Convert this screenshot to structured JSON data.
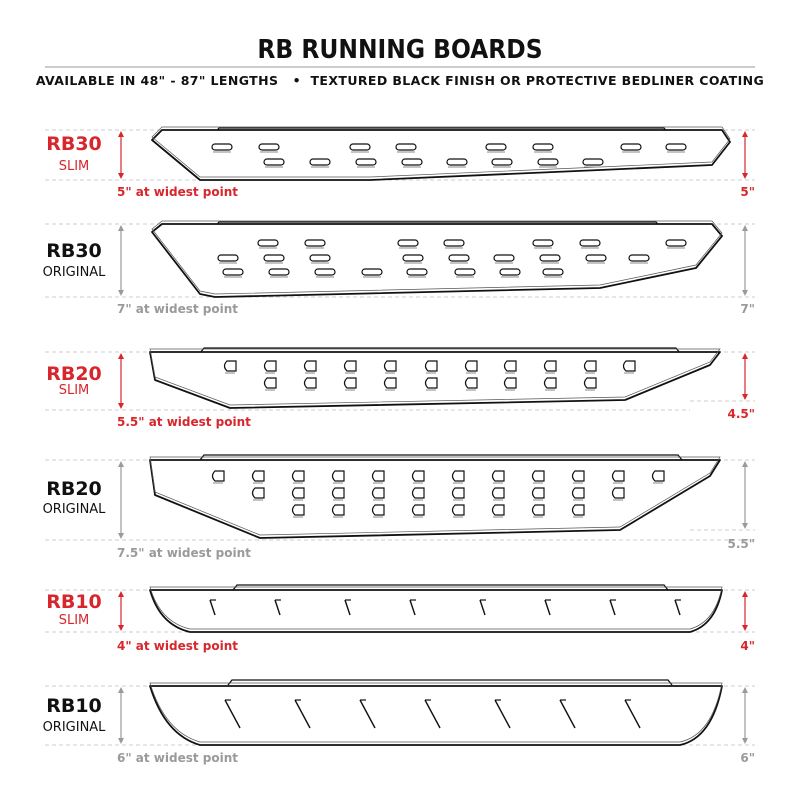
{
  "header": {
    "title": "RB RUNNING BOARDS",
    "subtitle": "AVAILABLE IN 48\" - 87\" LENGTHS   •  TEXTURED BLACK FINISH OR PROTECTIVE BEDLINER COATING"
  },
  "colors": {
    "accent": "#d7262c",
    "muted": "#9a9a9a",
    "text": "#111111"
  },
  "boards": [
    {
      "model": "RB30",
      "variant": "SLIM",
      "highlight": true,
      "widest_label": "5\" at widest point",
      "end_label": "5\""
    },
    {
      "model": "RB30",
      "variant": "ORIGINAL",
      "highlight": false,
      "widest_label": "7\" at widest point",
      "end_label": "7\""
    },
    {
      "model": "RB20",
      "variant": "SLIM",
      "highlight": true,
      "widest_label": "5.5\" at widest point",
      "end_label": "4.5\""
    },
    {
      "model": "RB20",
      "variant": "ORIGINAL",
      "highlight": false,
      "widest_label": "7.5\" at widest point",
      "end_label": "5.5\""
    },
    {
      "model": "RB10",
      "variant": "SLIM",
      "highlight": true,
      "widest_label": "4\" at widest point",
      "end_label": "4\""
    },
    {
      "model": "RB10",
      "variant": "ORIGINAL",
      "highlight": false,
      "widest_label": "6\" at widest point",
      "end_label": "6\""
    }
  ]
}
